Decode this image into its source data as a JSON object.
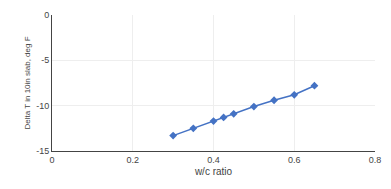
{
  "chart_data": {
    "type": "line",
    "x": [
      0.3,
      0.35,
      0.4,
      0.425,
      0.45,
      0.5,
      0.55,
      0.6,
      0.65
    ],
    "values": [
      -13.3,
      -12.5,
      -11.7,
      -11.3,
      -10.9,
      -10.1,
      -9.4,
      -8.8,
      -7.8
    ],
    "color": "#4472C4",
    "marker": "diamond",
    "line_style": "solid",
    "xlabel": "w/c ratio",
    "ylabel": "Delta T in 10in slab, deg F",
    "xlim": [
      0,
      0.8
    ],
    "ylim": [
      -15,
      0
    ],
    "xticks": [
      0,
      0.2,
      0.4,
      0.6,
      0.8
    ],
    "yticks": [
      0,
      -5,
      -10,
      -15
    ],
    "grid": true
  }
}
